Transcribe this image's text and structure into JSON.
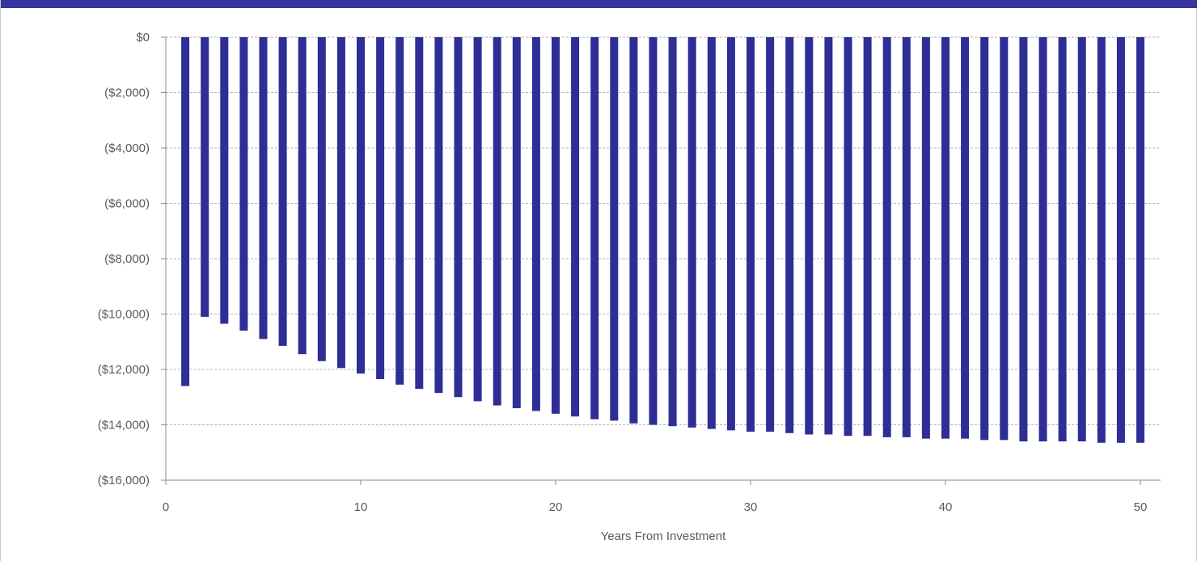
{
  "colors": {
    "header_bar": "#3535a0",
    "bar": "#2e2e96",
    "gridline": "#b4b4b4",
    "axis": "#888888",
    "text": "#5a5a5a"
  },
  "chart_data": {
    "type": "bar",
    "xlabel": "Years From Investment",
    "ylabel": "",
    "xlim": [
      0,
      51
    ],
    "ylim": [
      -16000,
      0
    ],
    "x_ticks": [
      0,
      10,
      20,
      30,
      40,
      50
    ],
    "x_tick_labels": [
      "0",
      "10",
      "20",
      "30",
      "40",
      "50"
    ],
    "y_ticks": [
      0,
      -2000,
      -4000,
      -6000,
      -8000,
      -10000,
      -12000,
      -14000,
      -16000
    ],
    "y_tick_labels": [
      "$0",
      "($2,000)",
      "($4,000)",
      "($6,000)",
      "($8,000)",
      "($10,000)",
      "($12,000)",
      "($14,000)",
      "($16,000)"
    ],
    "grid": "horizontal dashed",
    "categories": [
      1,
      2,
      3,
      4,
      5,
      6,
      7,
      8,
      9,
      10,
      11,
      12,
      13,
      14,
      15,
      16,
      17,
      18,
      19,
      20,
      21,
      22,
      23,
      24,
      25,
      26,
      27,
      28,
      29,
      30,
      31,
      32,
      33,
      34,
      35,
      36,
      37,
      38,
      39,
      40,
      41,
      42,
      43,
      44,
      45,
      46,
      47,
      48,
      49,
      50
    ],
    "values": [
      -12600,
      -10100,
      -10350,
      -10600,
      -10900,
      -11150,
      -11450,
      -11700,
      -11950,
      -12150,
      -12350,
      -12550,
      -12700,
      -12850,
      -13000,
      -13150,
      -13300,
      -13400,
      -13500,
      -13600,
      -13700,
      -13800,
      -13850,
      -13950,
      -14000,
      -14050,
      -14100,
      -14150,
      -14200,
      -14250,
      -14250,
      -14300,
      -14350,
      -14350,
      -14400,
      -14400,
      -14450,
      -14450,
      -14500,
      -14500,
      -14500,
      -14550,
      -14550,
      -14600,
      -14600,
      -14600,
      -14600,
      -14650,
      -14650,
      -14650
    ]
  }
}
